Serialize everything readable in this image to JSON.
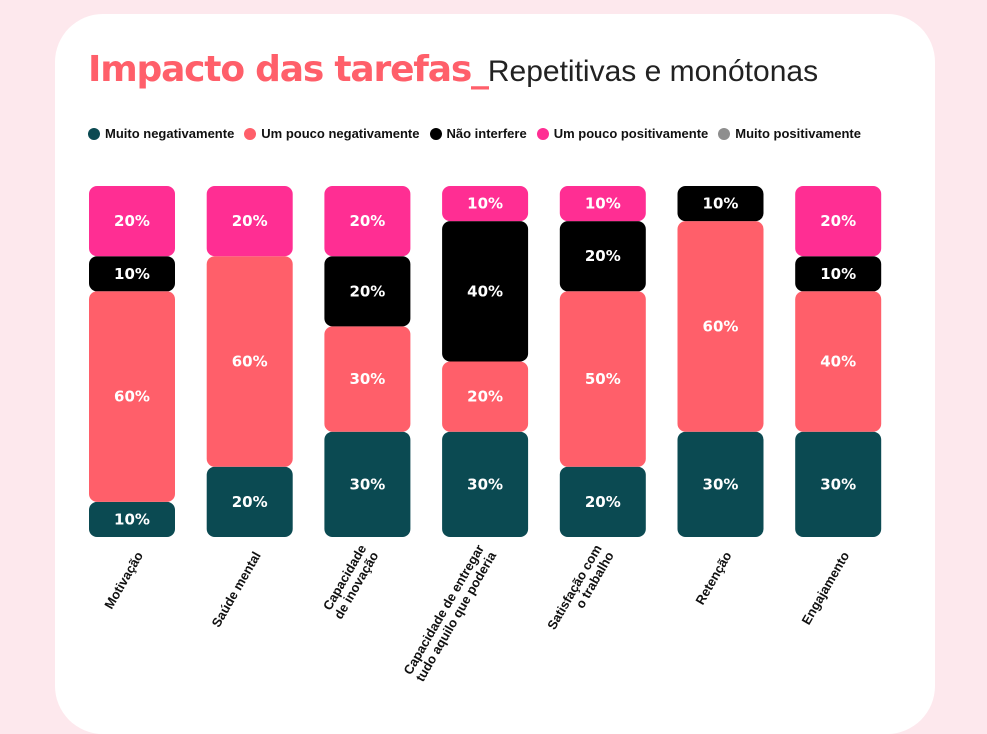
{
  "colors": {
    "page_background": "#fde8ed",
    "card_background": "#ffffff",
    "title_accent": "#ff5f6a"
  },
  "header": {
    "title_bold": "Impacto das tarefas_",
    "title_light": "Repetitivas e monótonas"
  },
  "chart_data": {
    "type": "bar",
    "stacked": true,
    "percent": true,
    "ylim": [
      0,
      100
    ],
    "categories": [
      [
        "Motivação"
      ],
      [
        "Saúde mental"
      ],
      [
        "Capacidade",
        "de inovação"
      ],
      [
        "Capacidade de entregar",
        "tudo aquilo que poderia"
      ],
      [
        "Satisfação com",
        "o trabalho"
      ],
      [
        "Retenção"
      ],
      [
        "Engajamento"
      ]
    ],
    "series": [
      {
        "name": "Muito negativamente",
        "color": "#0b4a52",
        "values": [
          10,
          20,
          30,
          30,
          20,
          30,
          30
        ]
      },
      {
        "name": "Um pouco negativamente",
        "color": "#ff5f6a",
        "values": [
          60,
          60,
          30,
          20,
          50,
          60,
          40
        ]
      },
      {
        "name": "Não interfere",
        "color": "#000000",
        "values": [
          10,
          0,
          20,
          40,
          20,
          10,
          10
        ]
      },
      {
        "name": "Um pouco positivamente",
        "color": "#ff2e93",
        "values": [
          20,
          20,
          20,
          10,
          10,
          0,
          20
        ]
      },
      {
        "name": "Muito positivamente",
        "color": "#8e8e8e",
        "values": [
          0,
          0,
          0,
          0,
          0,
          0,
          0
        ]
      }
    ],
    "value_suffix": "%"
  }
}
